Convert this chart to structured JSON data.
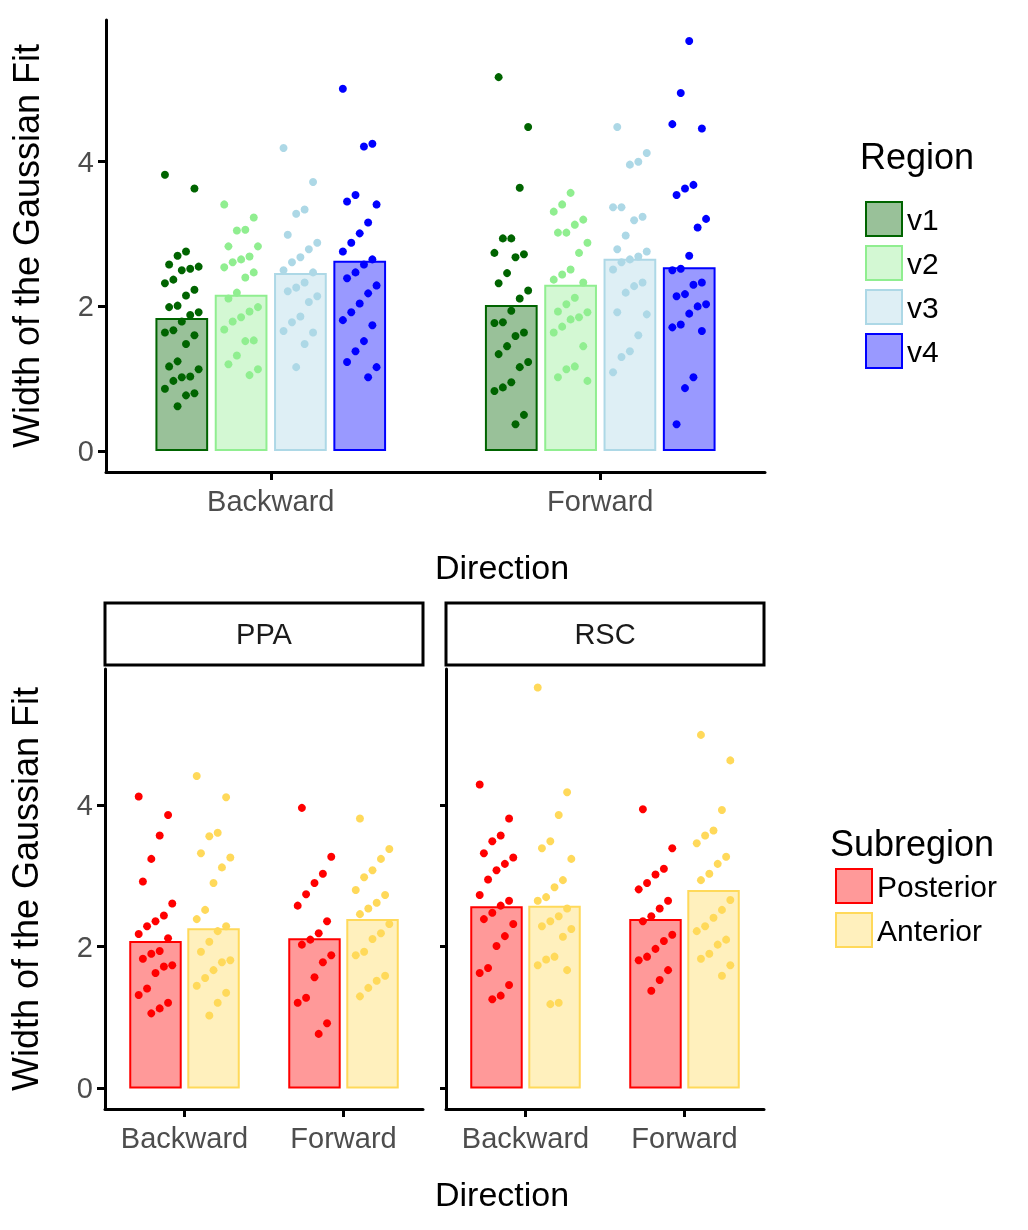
{
  "chart_data": [
    {
      "type": "bar",
      "xlabel": "Direction",
      "ylabel": "Width of the Gaussian Fit",
      "legend_title": "Region",
      "legend": "right",
      "grid": false,
      "marker": "circle",
      "categories": [
        "Backward",
        "Forward"
      ],
      "ylim": [
        -0.29,
        5.96
      ],
      "yticks": [
        0,
        2,
        4
      ],
      "series": [
        {
          "name": "v1",
          "color": "#006400",
          "values": [
            1.84,
            2.02
          ]
        },
        {
          "name": "v2",
          "color": "#90ee90",
          "values": [
            2.16,
            2.3
          ]
        },
        {
          "name": "v3",
          "color": "#add8e6",
          "values": [
            2.46,
            2.66
          ]
        },
        {
          "name": "v4",
          "color": "#0000ff",
          "values": [
            2.63,
            2.54
          ]
        },
        {
          "type": "scatter",
          "color": "#006400",
          "x": [
            "Backward",
            "Backward",
            "Backward",
            "Backward",
            "Backward",
            "Backward",
            "Backward",
            "Backward",
            "Backward",
            "Backward",
            "Backward",
            "Backward",
            "Backward",
            "Backward",
            "Backward",
            "Backward",
            "Backward",
            "Backward",
            "Backward",
            "Backward",
            "Backward",
            "Backward",
            "Backward",
            "Backward",
            "Backward",
            "Backward",
            "Backward",
            "Backward",
            "Backward",
            "Backward",
            "Backward",
            "Forward",
            "Forward",
            "Forward",
            "Forward",
            "Forward",
            "Forward",
            "Forward",
            "Forward",
            "Forward",
            "Forward",
            "Forward",
            "Forward",
            "Forward",
            "Forward",
            "Forward",
            "Forward",
            "Forward",
            "Forward",
            "Forward",
            "Forward",
            "Forward",
            "Forward",
            "Forward",
            "Forward",
            "Forward",
            "Forward"
          ],
          "values": [
            3.82,
            3.63,
            2.76,
            2.7,
            2.58,
            2.55,
            2.52,
            2.5,
            2.37,
            2.32,
            2.23,
            2.15,
            2.01,
            1.99,
            1.92,
            1.88,
            1.79,
            1.67,
            1.64,
            1.6,
            1.48,
            1.24,
            1.17,
            1.13,
            1.03,
            1.02,
            0.97,
            0.86,
            0.8,
            0.77,
            0.62,
            5.17,
            4.48,
            3.64,
            2.94,
            2.94,
            2.74,
            2.72,
            2.68,
            2.46,
            2.32,
            2.22,
            2.11,
            1.94,
            1.78,
            1.77,
            1.64,
            1.59,
            1.45,
            1.34,
            1.23,
            1.16,
            0.95,
            0.88,
            0.83,
            0.5,
            0.37
          ]
        },
        {
          "type": "scatter",
          "color": "#90ee90",
          "x": [
            "Backward",
            "Backward",
            "Backward",
            "Backward",
            "Backward",
            "Backward",
            "Backward",
            "Backward",
            "Backward",
            "Backward",
            "Backward",
            "Backward",
            "Backward",
            "Backward",
            "Backward",
            "Backward",
            "Backward",
            "Backward",
            "Backward",
            "Backward",
            "Backward",
            "Backward",
            "Backward",
            "Backward",
            "Backward",
            "Forward",
            "Forward",
            "Forward",
            "Forward",
            "Forward",
            "Forward",
            "Forward",
            "Forward",
            "Forward",
            "Forward",
            "Forward",
            "Forward",
            "Forward",
            "Forward",
            "Forward",
            "Forward",
            "Forward",
            "Forward",
            "Forward",
            "Forward",
            "Forward",
            "Forward",
            "Forward",
            "Forward",
            "Forward",
            "Forward"
          ],
          "values": [
            3.41,
            3.23,
            3.06,
            3.05,
            2.83,
            2.83,
            2.69,
            2.65,
            2.61,
            2.54,
            2.47,
            2.4,
            2.19,
            2.11,
            1.99,
            1.93,
            1.85,
            1.79,
            1.68,
            1.53,
            1.52,
            1.32,
            1.2,
            1.13,
            1.05,
            3.57,
            3.41,
            3.31,
            3.2,
            3.13,
            3.02,
            3.02,
            2.88,
            2.74,
            2.51,
            2.44,
            2.37,
            2.33,
            2.12,
            2.03,
            1.93,
            1.92,
            1.85,
            1.82,
            1.72,
            1.64,
            1.45,
            1.17,
            1.13,
            1.02,
            0.97
          ]
        },
        {
          "type": "scatter",
          "color": "#add8e6",
          "x": [
            "Backward",
            "Backward",
            "Backward",
            "Backward",
            "Backward",
            "Backward",
            "Backward",
            "Backward",
            "Backward",
            "Backward",
            "Backward",
            "Backward",
            "Backward",
            "Backward",
            "Backward",
            "Backward",
            "Backward",
            "Backward",
            "Backward",
            "Backward",
            "Backward",
            "Backward",
            "Forward",
            "Forward",
            "Forward",
            "Forward",
            "Forward",
            "Forward",
            "Forward",
            "Forward",
            "Forward",
            "Forward",
            "Forward",
            "Forward",
            "Forward",
            "Forward",
            "Forward",
            "Forward",
            "Forward",
            "Forward",
            "Forward",
            "Forward",
            "Forward",
            "Forward",
            "Forward",
            "Forward"
          ],
          "values": [
            4.19,
            3.72,
            3.34,
            3.28,
            2.99,
            2.88,
            2.79,
            2.68,
            2.61,
            2.5,
            2.47,
            2.33,
            2.26,
            2.21,
            2.14,
            2.06,
            1.86,
            1.78,
            1.66,
            1.64,
            1.48,
            1.16,
            4.48,
            4.12,
            4.0,
            3.96,
            3.37,
            3.37,
            3.24,
            3.19,
            2.98,
            2.79,
            2.76,
            2.69,
            2.65,
            2.61,
            2.51,
            2.33,
            2.28,
            2.19,
            1.92,
            1.89,
            1.6,
            1.38,
            1.3,
            1.09
          ]
        },
        {
          "type": "scatter",
          "color": "#0000ff",
          "x": [
            "Backward",
            "Backward",
            "Backward",
            "Backward",
            "Backward",
            "Backward",
            "Backward",
            "Backward",
            "Backward",
            "Backward",
            "Backward",
            "Backward",
            "Backward",
            "Backward",
            "Backward",
            "Backward",
            "Backward",
            "Backward",
            "Backward",
            "Backward",
            "Backward",
            "Backward",
            "Backward",
            "Backward",
            "Backward",
            "Forward",
            "Forward",
            "Forward",
            "Forward",
            "Forward",
            "Forward",
            "Forward",
            "Forward",
            "Forward",
            "Forward",
            "Forward",
            "Forward",
            "Forward",
            "Forward",
            "Forward",
            "Forward",
            "Forward",
            "Forward",
            "Forward",
            "Forward",
            "Forward",
            "Forward",
            "Forward",
            "Forward",
            "Forward"
          ],
          "values": [
            5.01,
            4.25,
            4.21,
            3.54,
            3.45,
            3.41,
            3.16,
            3.01,
            2.88,
            2.76,
            2.65,
            2.58,
            2.47,
            2.39,
            2.29,
            2.18,
            2.04,
            1.92,
            1.81,
            1.74,
            1.52,
            1.38,
            1.23,
            1.16,
            1.02,
            5.67,
            4.95,
            4.52,
            4.46,
            3.68,
            3.63,
            3.54,
            3.21,
            3.09,
            2.7,
            2.52,
            2.5,
            2.33,
            2.3,
            2.17,
            2.14,
            2.03,
            2.0,
            1.9,
            1.75,
            1.71,
            1.66,
            1.02,
            0.87,
            0.37
          ]
        }
      ]
    },
    {
      "type": "bar",
      "title": "PPA",
      "xlabel": "Direction",
      "ylabel": "Width of the Gaussian Fit",
      "grid": false,
      "marker": "circle",
      "categories": [
        "Backward",
        "Forward"
      ],
      "ylim": [
        -0.29,
        5.92
      ],
      "yticks": [
        0,
        2,
        4
      ],
      "series": [
        {
          "color": "#ff0000",
          "values": [
            2.08,
            2.12
          ]
        },
        {
          "color": "#ffd95a",
          "values": [
            2.26,
            2.39
          ]
        },
        {
          "type": "scatter",
          "color": "#ff0000",
          "x": [
            "Backward",
            "Backward",
            "Backward",
            "Backward",
            "Backward",
            "Backward",
            "Backward",
            "Backward",
            "Backward",
            "Backward",
            "Backward",
            "Backward",
            "Backward",
            "Backward",
            "Backward",
            "Backward",
            "Backward",
            "Backward",
            "Backward",
            "Backward",
            "Backward",
            "Backward",
            "Forward",
            "Forward",
            "Forward",
            "Forward",
            "Forward",
            "Forward",
            "Forward",
            "Forward",
            "Forward",
            "Forward",
            "Forward",
            "Forward",
            "Forward",
            "Forward",
            "Forward",
            "Forward",
            "Forward"
          ],
          "values": [
            4.12,
            3.86,
            3.57,
            3.24,
            2.92,
            2.61,
            2.44,
            2.36,
            2.29,
            2.18,
            2.12,
            1.94,
            1.9,
            1.83,
            1.74,
            1.72,
            1.63,
            1.41,
            1.32,
            1.21,
            1.13,
            1.06,
            3.96,
            3.27,
            3.03,
            2.9,
            2.74,
            2.58,
            2.36,
            2.19,
            2.1,
            2.03,
            1.88,
            1.78,
            1.57,
            1.28,
            1.21,
            0.92,
            0.77
          ]
        },
        {
          "type": "scatter",
          "color": "#ffd95a",
          "x": [
            "Backward",
            "Backward",
            "Backward",
            "Backward",
            "Backward",
            "Backward",
            "Backward",
            "Backward",
            "Backward",
            "Backward",
            "Backward",
            "Backward",
            "Backward",
            "Backward",
            "Backward",
            "Backward",
            "Backward",
            "Backward",
            "Backward",
            "Backward",
            "Backward",
            "Backward",
            "Forward",
            "Forward",
            "Forward",
            "Forward",
            "Forward",
            "Forward",
            "Forward",
            "Forward",
            "Forward",
            "Forward",
            "Forward",
            "Forward",
            "Forward",
            "Forward",
            "Forward",
            "Forward",
            "Forward",
            "Forward",
            "Forward"
          ],
          "values": [
            4.41,
            4.11,
            3.61,
            3.56,
            3.32,
            3.26,
            3.12,
            2.9,
            2.52,
            2.39,
            2.29,
            2.22,
            2.07,
            1.93,
            1.81,
            1.78,
            1.67,
            1.56,
            1.45,
            1.35,
            1.21,
            1.03,
            3.81,
            3.38,
            3.24,
            3.08,
            2.98,
            2.8,
            2.73,
            2.62,
            2.54,
            2.46,
            2.32,
            2.19,
            2.11,
            1.93,
            1.88,
            1.59,
            1.52,
            1.42,
            1.3
          ]
        }
      ]
    },
    {
      "type": "bar",
      "title": "RSC",
      "legend_title": "Subregion",
      "legend": "right",
      "grid": false,
      "marker": "circle",
      "tick_labels": "x",
      "categories": [
        "Backward",
        "Forward"
      ],
      "ylim": [
        -0.29,
        5.92
      ],
      "yticks": [
        0,
        2,
        4
      ],
      "series": [
        {
          "name": "Posterior",
          "color": "#ff0000",
          "values": [
            2.57,
            2.39
          ]
        },
        {
          "name": "Anterior",
          "color": "#ffd95a",
          "values": [
            2.58,
            2.8
          ]
        },
        {
          "type": "scatter",
          "color": "#ff0000",
          "x": [
            "Backward",
            "Backward",
            "Backward",
            "Backward",
            "Backward",
            "Backward",
            "Backward",
            "Backward",
            "Backward",
            "Backward",
            "Backward",
            "Backward",
            "Backward",
            "Backward",
            "Backward",
            "Backward",
            "Backward",
            "Backward",
            "Backward",
            "Backward",
            "Backward",
            "Backward",
            "Forward",
            "Forward",
            "Forward",
            "Forward",
            "Forward",
            "Forward",
            "Forward",
            "Forward",
            "Forward",
            "Forward",
            "Forward",
            "Forward",
            "Forward",
            "Forward",
            "Forward",
            "Forward",
            "Forward",
            "Forward"
          ],
          "values": [
            4.29,
            3.81,
            3.57,
            3.49,
            3.32,
            3.26,
            3.17,
            3.08,
            2.95,
            2.73,
            2.65,
            2.58,
            2.48,
            2.39,
            2.32,
            2.15,
            2.01,
            1.7,
            1.63,
            1.46,
            1.31,
            1.26,
            3.94,
            3.39,
            3.1,
            3.02,
            2.9,
            2.81,
            2.65,
            2.54,
            2.43,
            2.36,
            2.17,
            2.08,
            1.97,
            1.86,
            1.81,
            1.67,
            1.53,
            1.38
          ]
        },
        {
          "type": "scatter",
          "color": "#ffd95a",
          "x": [
            "Backward",
            "Backward",
            "Backward",
            "Backward",
            "Backward",
            "Backward",
            "Backward",
            "Backward",
            "Backward",
            "Backward",
            "Backward",
            "Backward",
            "Backward",
            "Backward",
            "Backward",
            "Backward",
            "Backward",
            "Backward",
            "Backward",
            "Backward",
            "Backward",
            "Backward",
            "Forward",
            "Forward",
            "Forward",
            "Forward",
            "Forward",
            "Forward",
            "Forward",
            "Forward",
            "Forward",
            "Forward",
            "Forward",
            "Forward",
            "Forward",
            "Forward",
            "Forward",
            "Forward",
            "Forward",
            "Forward",
            "Forward",
            "Forward",
            "Forward"
          ],
          "values": [
            5.66,
            4.18,
            3.86,
            3.49,
            3.39,
            3.24,
            2.94,
            2.84,
            2.7,
            2.65,
            2.54,
            2.43,
            2.36,
            2.29,
            2.25,
            2.14,
            1.86,
            1.82,
            1.74,
            1.67,
            1.21,
            1.19,
            4.99,
            4.63,
            3.93,
            3.64,
            3.57,
            3.46,
            3.27,
            3.17,
            3.03,
            2.94,
            2.66,
            2.52,
            2.41,
            2.29,
            2.22,
            2.1,
            2.03,
            1.9,
            1.83,
            1.74,
            1.59
          ]
        }
      ]
    }
  ]
}
